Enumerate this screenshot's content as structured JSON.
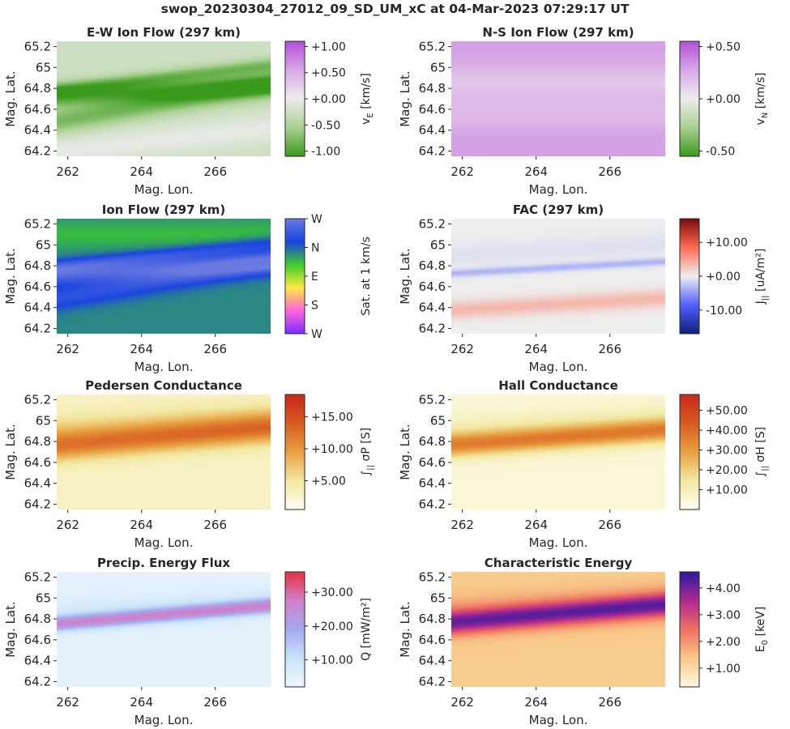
{
  "suptitle": "swop_20230304_27012_09_SD_UM_xC at 04-Mar-2023 07:29:17 UT",
  "chart_data": [
    {
      "type": "heatmap",
      "id": "ew",
      "title": "E-W Ion Flow (297 km)",
      "xlabel": "Mag. Lon.",
      "ylabel": "Mag. Lat.",
      "xlim": [
        261.7,
        267.5
      ],
      "ylim": [
        64.15,
        65.25
      ],
      "xticks": [
        "262",
        "264",
        "266"
      ],
      "xtick_values": [
        262,
        264,
        266
      ],
      "yticks": [
        "65.2",
        "65",
        "64.8",
        "64.6",
        "64.4",
        "64.2"
      ],
      "ytick_values": [
        65.2,
        65.0,
        64.8,
        64.6,
        64.4,
        64.2
      ],
      "colorbar": {
        "label": "v_E [km/s]",
        "label_main": "v",
        "label_sub": "E",
        "label_rest": " [km/s]",
        "range": [
          -1.1,
          1.1
        ],
        "ticks": [
          "+1.00",
          "+0.50",
          "+0.00",
          "-0.50",
          "-1.00"
        ],
        "tick_values": [
          1.0,
          0.5,
          0.0,
          -0.5,
          -1.0
        ],
        "colors": [
          "#3a9a1c",
          "#a8d090",
          "#ececec",
          "#d8a8e6",
          "#b24fd8"
        ]
      },
      "background": -0.25,
      "features": [
        {
          "lat0": 64.72,
          "slope": 0.02,
          "amp": -0.7,
          "width": 0.07
        },
        {
          "lat0": 64.8,
          "slope": 0.04,
          "amp": -0.55,
          "width": 0.05
        },
        {
          "lat0": 64.5,
          "slope": 0.06,
          "amp": -0.55,
          "width": 0.08
        },
        {
          "lat0": 64.2,
          "slope": 0.04,
          "amp": 0.2,
          "width": 0.1
        }
      ]
    },
    {
      "type": "heatmap",
      "id": "ns",
      "title": "N-S Ion Flow (297 km)",
      "xlabel": "Mag. Lon.",
      "ylabel": "Mag. Lat.",
      "xlim": [
        261.7,
        267.5
      ],
      "ylim": [
        64.15,
        65.25
      ],
      "xticks": [
        "262",
        "264",
        "266"
      ],
      "xtick_values": [
        262,
        264,
        266
      ],
      "yticks": [
        "65.2",
        "65",
        "64.8",
        "64.6",
        "64.4",
        "64.2"
      ],
      "ytick_values": [
        65.2,
        65.0,
        64.8,
        64.6,
        64.4,
        64.2
      ],
      "colorbar": {
        "label": "v_N [km/s]",
        "label_main": "v",
        "label_sub": "N",
        "label_rest": " [km/s]",
        "range": [
          -0.55,
          0.55
        ],
        "ticks": [
          "+0.50",
          "+0.00",
          "-0.50"
        ],
        "tick_values": [
          0.5,
          0.0,
          -0.5
        ],
        "colors": [
          "#3a9a1c",
          "#a8d090",
          "#ececec",
          "#d8a8e6",
          "#b24fd8"
        ]
      },
      "background": 0.3,
      "features": [
        {
          "lat0": 64.85,
          "slope": 0.0,
          "amp": -0.15,
          "width": 0.12
        },
        {
          "lat0": 64.55,
          "slope": 0.0,
          "amp": -0.1,
          "width": 0.1
        }
      ]
    },
    {
      "type": "heatmap",
      "id": "flow",
      "title": "Ion Flow (297 km)",
      "xlabel": "Mag. Lon.",
      "ylabel": "Mag. Lat.",
      "xlim": [
        261.7,
        267.5
      ],
      "ylim": [
        64.15,
        65.25
      ],
      "xticks": [
        "262",
        "264",
        "266"
      ],
      "xtick_values": [
        262,
        264,
        266
      ],
      "yticks": [
        "65.2",
        "65",
        "64.8",
        "64.6",
        "64.4",
        "64.2"
      ],
      "ytick_values": [
        65.2,
        65.0,
        64.8,
        64.6,
        64.4,
        64.2
      ],
      "colorbar": {
        "label": "Sat. at 1 km/s",
        "label_main": "Sat. at 1 km/s",
        "label_sub": "",
        "label_rest": "",
        "range": [
          0,
          4
        ],
        "ticks": [
          "W",
          "N",
          "E",
          "S",
          "W"
        ],
        "tick_values": [
          4,
          3,
          2,
          1,
          0
        ],
        "colors": [
          "#7a2cff",
          "#ff66e0",
          "#ffe840",
          "#3ccc2a",
          "#1a44e0",
          "#6a7ae0"
        ]
      },
      "background": 2.8,
      "features": [
        {
          "lat0": 64.72,
          "slope": 0.02,
          "amp": 0.9,
          "width": 0.07
        },
        {
          "lat0": 64.8,
          "slope": 0.04,
          "amp": 0.6,
          "width": 0.05
        },
        {
          "lat0": 64.5,
          "slope": 0.06,
          "amp": 0.6,
          "width": 0.08
        },
        {
          "lat0": 65.1,
          "slope": 0.0,
          "amp": -0.3,
          "width": 0.1
        }
      ]
    },
    {
      "type": "heatmap",
      "id": "fac",
      "title": "FAC (297 km)",
      "xlabel": "Mag. Lon.",
      "ylabel": "Mag. Lat.",
      "xlim": [
        261.7,
        267.5
      ],
      "ylim": [
        64.15,
        65.25
      ],
      "xticks": [
        "262",
        "264",
        "266"
      ],
      "xtick_values": [
        262,
        264,
        266
      ],
      "yticks": [
        "65.2",
        "65",
        "64.8",
        "64.6",
        "64.4",
        "64.2"
      ],
      "ytick_values": [
        65.2,
        65.0,
        64.8,
        64.6,
        64.4,
        64.2
      ],
      "colorbar": {
        "label": "J_|| [uA/m^2]",
        "label_main": "J",
        "label_sub": "||",
        "label_rest": " [uA/m²]",
        "range": [
          -17,
          17
        ],
        "ticks": [
          "+10.00",
          "+0.00",
          "-10.00"
        ],
        "tick_values": [
          10,
          0,
          -10
        ],
        "colors": [
          "#10207a",
          "#5060ff",
          "#eeeeee",
          "#ff6a50",
          "#7a0a0a"
        ]
      },
      "background": 0.0,
      "features": [
        {
          "lat0": 64.73,
          "slope": 0.02,
          "amp": -3.5,
          "width": 0.025
        },
        {
          "lat0": 64.38,
          "slope": 0.02,
          "amp": 3.5,
          "width": 0.06
        },
        {
          "lat0": 64.9,
          "slope": 0.02,
          "amp": -0.8,
          "width": 0.08
        }
      ]
    },
    {
      "type": "heatmap",
      "id": "ped",
      "title": "Pedersen Conductance",
      "xlabel": "Mag. Lon.",
      "ylabel": "Mag. Lat.",
      "xlim": [
        261.7,
        267.5
      ],
      "ylim": [
        64.15,
        65.25
      ],
      "xticks": [
        "262",
        "264",
        "266"
      ],
      "xtick_values": [
        262,
        264,
        266
      ],
      "yticks": [
        "65.2",
        "65",
        "64.8",
        "64.6",
        "64.4",
        "64.2"
      ],
      "ytick_values": [
        65.2,
        65.0,
        64.8,
        64.6,
        64.4,
        64.2
      ],
      "colorbar": {
        "label": "∫_|| σ_P [S]",
        "label_main": "∫",
        "label_sub": "||",
        "label_rest": " σP [S]",
        "range": [
          0.5,
          18.5
        ],
        "ticks": [
          "+15.00",
          "+10.00",
          "+5.00"
        ],
        "tick_values": [
          15,
          10,
          5
        ],
        "colors": [
          "#fffdf2",
          "#f2e8a0",
          "#e8a040",
          "#d85a20",
          "#c82818"
        ]
      },
      "background": 3.0,
      "features": [
        {
          "lat0": 64.76,
          "slope": 0.03,
          "amp": 8.0,
          "width": 0.1
        },
        {
          "lat0": 64.9,
          "slope": 0.02,
          "amp": 3.0,
          "width": 0.12
        }
      ]
    },
    {
      "type": "heatmap",
      "id": "hall",
      "title": "Hall Conductance",
      "xlabel": "Mag. Lon.",
      "ylabel": "Mag. Lat.",
      "xlim": [
        261.7,
        267.5
      ],
      "ylim": [
        64.15,
        65.25
      ],
      "xticks": [
        "262",
        "264",
        "266"
      ],
      "xtick_values": [
        262,
        264,
        266
      ],
      "yticks": [
        "65.2",
        "65",
        "64.8",
        "64.6",
        "64.4",
        "64.2"
      ],
      "ytick_values": [
        65.2,
        65.0,
        64.8,
        64.6,
        64.4,
        64.2
      ],
      "colorbar": {
        "label": "∫_|| σ_H [S]",
        "label_main": "∫",
        "label_sub": "||",
        "label_rest": " σH [S]",
        "range": [
          0,
          58
        ],
        "ticks": [
          "+50.00",
          "+40.00",
          "+30.00",
          "+20.00",
          "+10.00"
        ],
        "tick_values": [
          50,
          40,
          30,
          20,
          10
        ],
        "colors": [
          "#fffdf2",
          "#f2e8a0",
          "#e8a040",
          "#d85a20",
          "#c82818"
        ]
      },
      "background": 5.0,
      "features": [
        {
          "lat0": 64.77,
          "slope": 0.025,
          "amp": 28.0,
          "width": 0.08
        },
        {
          "lat0": 64.88,
          "slope": 0.02,
          "amp": 6.0,
          "width": 0.12
        }
      ]
    },
    {
      "type": "heatmap",
      "id": "flux",
      "title": "Precip. Energy Flux",
      "xlabel": "Mag. Lon.",
      "ylabel": "Mag. Lat.",
      "xlim": [
        261.7,
        267.5
      ],
      "ylim": [
        64.15,
        65.25
      ],
      "xticks": [
        "262",
        "264",
        "266"
      ],
      "xtick_values": [
        262,
        264,
        266
      ],
      "yticks": [
        "65.2",
        "65",
        "64.8",
        "64.6",
        "64.4",
        "64.2"
      ],
      "ytick_values": [
        65.2,
        65.0,
        64.8,
        64.6,
        64.4,
        64.2
      ],
      "colorbar": {
        "label": "Q [mW/m^2]",
        "label_main": "Q",
        "label_sub": "",
        "label_rest": " [mW/m²]",
        "range": [
          2,
          36
        ],
        "ticks": [
          "+30.00",
          "+20.00",
          "+10.00"
        ],
        "tick_values": [
          30,
          20,
          10
        ],
        "colors": [
          "#eef6ff",
          "#c8e4f8",
          "#a6a8f0",
          "#d080c8",
          "#e83040"
        ]
      },
      "background": 4.0,
      "features": [
        {
          "lat0": 64.76,
          "slope": 0.03,
          "amp": 20.0,
          "width": 0.05
        },
        {
          "lat0": 64.85,
          "slope": 0.02,
          "amp": 4.0,
          "width": 0.1
        }
      ]
    },
    {
      "type": "heatmap",
      "id": "char",
      "title": "Characteristic Energy",
      "xlabel": "Mag. Lon.",
      "ylabel": "Mag. Lat.",
      "xlim": [
        261.7,
        267.5
      ],
      "ylim": [
        64.15,
        65.25
      ],
      "xticks": [
        "262",
        "264",
        "266"
      ],
      "xtick_values": [
        262,
        264,
        266
      ],
      "yticks": [
        "65.2",
        "65",
        "64.8",
        "64.6",
        "64.4",
        "64.2"
      ],
      "ytick_values": [
        65.2,
        65.0,
        64.8,
        64.6,
        64.4,
        64.2
      ],
      "colorbar": {
        "label": "E_0 [keV]",
        "label_main": "E",
        "label_sub": "0",
        "label_rest": " [keV]",
        "range": [
          0.3,
          4.6
        ],
        "ticks": [
          "+4.00",
          "+3.00",
          "+2.00",
          "+1.00"
        ],
        "tick_values": [
          4,
          3,
          2,
          1
        ],
        "colors": [
          "#fff8e0",
          "#f8c888",
          "#f07060",
          "#b02890",
          "#2a1aa0"
        ]
      },
      "background": 1.3,
      "features": [
        {
          "lat0": 64.77,
          "slope": 0.03,
          "amp": 2.4,
          "width": 0.08
        },
        {
          "lat0": 64.85,
          "slope": 0.02,
          "amp": 0.6,
          "width": 0.12
        }
      ]
    }
  ]
}
